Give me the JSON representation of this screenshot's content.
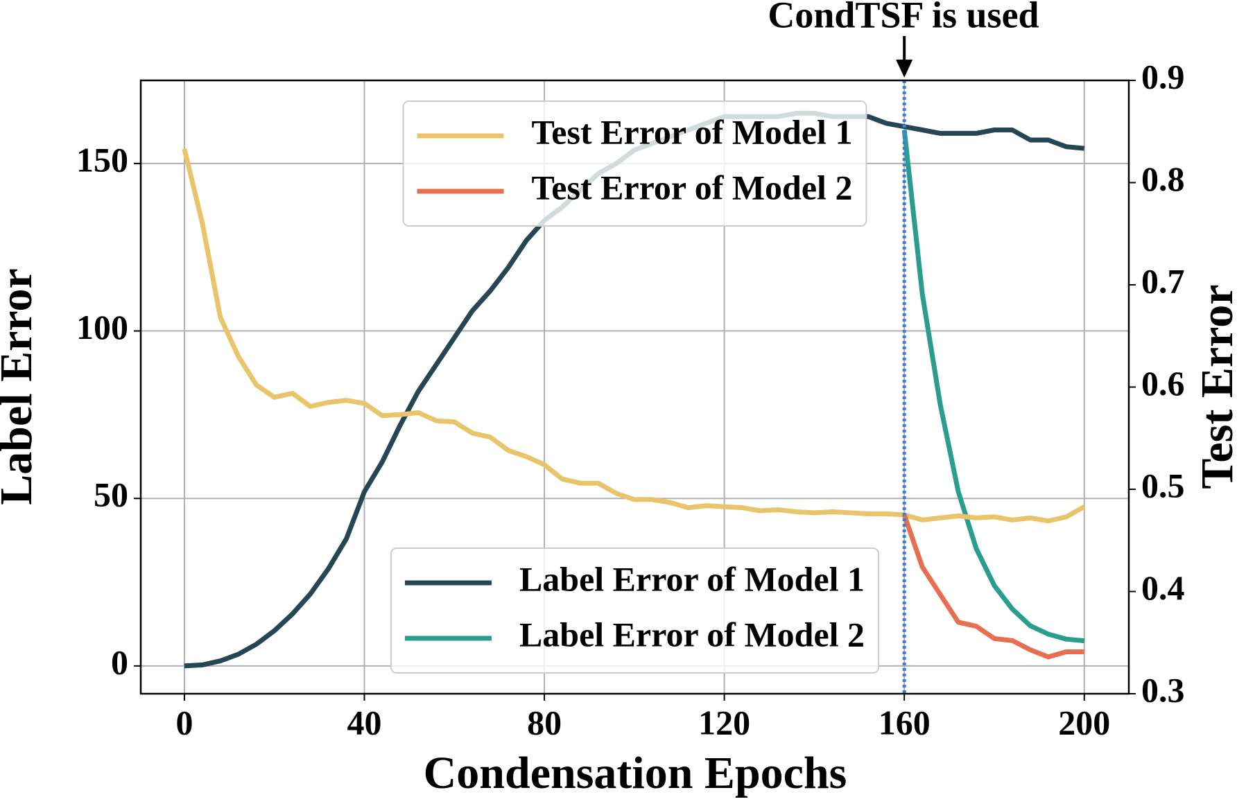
{
  "chart_data": {
    "type": "line",
    "annotation": "CondTSF is used",
    "vline_x": 160,
    "vline_color": "#3a7fd5",
    "xlabel": "Condensation Epochs",
    "ylabel": "Label Error",
    "y2label": "Test Error",
    "x": [
      0,
      4,
      8,
      12,
      16,
      20,
      24,
      28,
      32,
      36,
      40,
      44,
      48,
      52,
      56,
      60,
      64,
      68,
      72,
      76,
      80,
      84,
      88,
      92,
      96,
      100,
      104,
      108,
      112,
      116,
      120,
      124,
      128,
      132,
      136,
      140,
      144,
      148,
      152,
      156,
      160,
      164,
      168,
      172,
      176,
      180,
      184,
      188,
      192,
      196,
      200
    ],
    "xlim": [
      -9.7,
      209.9
    ],
    "ylim": [
      -8.3,
      174.8
    ],
    "y2lim": [
      0.3,
      0.9
    ],
    "xticks": [
      0,
      40,
      80,
      120,
      160,
      200
    ],
    "yticks": [
      0,
      50,
      100,
      150
    ],
    "y2ticks": [
      0.3,
      0.4,
      0.5,
      0.6,
      0.7,
      0.8,
      0.9
    ],
    "grid": true,
    "series": [
      {
        "name": "Label Error of Model 1",
        "color": "#264653",
        "axis": "y",
        "legend_loc": "lower center",
        "values": [
          0,
          0.3,
          1.5,
          3.5,
          6.5,
          10.5,
          15.5,
          21.5,
          29,
          38,
          52,
          61,
          72,
          82,
          90,
          98,
          106,
          112,
          119,
          127,
          133,
          137,
          142,
          147,
          150,
          154,
          156,
          158,
          160,
          162,
          164,
          164,
          164,
          164,
          165,
          165,
          164,
          164,
          164,
          162,
          161,
          160,
          159,
          159,
          159,
          160,
          160,
          157,
          157,
          155,
          154.5
        ]
      },
      {
        "name": "Label Error of Model 2",
        "color": "#2a9d8f",
        "axis": "y",
        "legend_loc": "lower center",
        "values": [
          null,
          null,
          null,
          null,
          null,
          null,
          null,
          null,
          null,
          null,
          null,
          null,
          null,
          null,
          null,
          null,
          null,
          null,
          null,
          null,
          null,
          null,
          null,
          null,
          null,
          null,
          null,
          null,
          null,
          null,
          null,
          null,
          null,
          null,
          null,
          null,
          null,
          null,
          null,
          null,
          160,
          111,
          78,
          52,
          35,
          24,
          17,
          12,
          9.5,
          8,
          7.5
        ]
      },
      {
        "name": "Test Error of Model 1",
        "color": "#e9c46a",
        "axis": "y2",
        "legend_loc": "upper center",
        "values": [
          0.833,
          0.76,
          0.668,
          0.63,
          0.602,
          0.59,
          0.594,
          0.581,
          0.585,
          0.587,
          0.584,
          0.572,
          0.573,
          0.575,
          0.567,
          0.566,
          0.555,
          0.551,
          0.538,
          0.532,
          0.524,
          0.51,
          0.506,
          0.506,
          0.496,
          0.49,
          0.49,
          0.487,
          0.482,
          0.484,
          0.483,
          0.482,
          0.479,
          0.48,
          0.478,
          0.477,
          0.478,
          0.477,
          0.476,
          0.476,
          0.475,
          0.47,
          0.472,
          0.474,
          0.472,
          0.473,
          0.47,
          0.472,
          0.469,
          0.473,
          0.483
        ]
      },
      {
        "name": "Test Error of Model 2",
        "color": "#e76f51",
        "axis": "y2",
        "legend_loc": "upper center",
        "values": [
          null,
          null,
          null,
          null,
          null,
          null,
          null,
          null,
          null,
          null,
          null,
          null,
          null,
          null,
          null,
          null,
          null,
          null,
          null,
          null,
          null,
          null,
          null,
          null,
          null,
          null,
          null,
          null,
          null,
          null,
          null,
          null,
          null,
          null,
          null,
          null,
          null,
          null,
          null,
          null,
          0.475,
          0.424,
          0.397,
          0.37,
          0.366,
          0.354,
          0.352,
          0.343,
          0.336,
          0.341,
          0.341
        ]
      }
    ]
  }
}
